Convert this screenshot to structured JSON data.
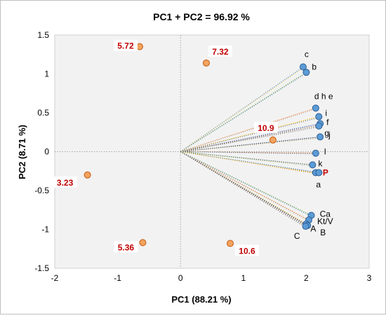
{
  "chart_data": {
    "type": "scatter",
    "title": "PC1 + PC2 = 96.92 %",
    "xlabel": "PC1 (88.21 %)",
    "ylabel": "PC2 (8.71 %)",
    "xlim": [
      -2,
      3
    ],
    "ylim": [
      -1.5,
      1.5
    ],
    "xticks": [
      -2,
      -1,
      0,
      1,
      2,
      3
    ],
    "yticks": [
      -1.5,
      -1,
      -0.5,
      0,
      0.5,
      1,
      1.5
    ],
    "xtick_labels": [
      "-2",
      "-1",
      "0",
      "1",
      "2",
      "3"
    ],
    "ytick_labels": [
      "-1.5",
      "-1",
      "-0.5",
      "0",
      "0.5",
      "1",
      "1.5"
    ],
    "grid": "vertical and horizontal at zero only (dotted)",
    "colors": {
      "loadings": "#5b9bd5",
      "scores": "#f4a460",
      "score_label": "#c00000",
      "plot_bg": "#f2f2f2"
    },
    "series": [
      {
        "kind": "loadings",
        "points": [
          {
            "label": "c",
            "x": 1.95,
            "y": 1.09
          },
          {
            "label": "b",
            "x": 2.0,
            "y": 1.02
          },
          {
            "label": "d h e",
            "x": 2.15,
            "y": 0.56
          },
          {
            "label": "i",
            "x": 2.2,
            "y": 0.45
          },
          {
            "label": "f",
            "x": 2.22,
            "y": 0.36
          },
          {
            "label": "g",
            "x": 2.2,
            "y": 0.33
          },
          {
            "label": "j",
            "x": 2.22,
            "y": 0.19
          },
          {
            "label": "l",
            "x": 2.15,
            "y": -0.02
          },
          {
            "label": "k",
            "x": 2.1,
            "y": -0.17
          },
          {
            "label": "P",
            "x": 2.15,
            "y": -0.27,
            "highlight": true
          },
          {
            "label": "a",
            "x": 2.2,
            "y": -0.27
          },
          {
            "label": "Ca",
            "x": 2.08,
            "y": -0.82
          },
          {
            "label": "Kt/V",
            "x": 2.04,
            "y": -0.88
          },
          {
            "label": "A",
            "x": 2.0,
            "y": -0.93
          },
          {
            "label": "B",
            "x": 2.02,
            "y": -0.95
          },
          {
            "label": "C",
            "x": 1.99,
            "y": -0.96
          }
        ]
      },
      {
        "kind": "scores",
        "points": [
          {
            "label": "5.72",
            "x": -0.65,
            "y": 1.35
          },
          {
            "label": "7.32",
            "x": 0.41,
            "y": 1.14
          },
          {
            "label": "10.9",
            "x": 1.47,
            "y": 0.15
          },
          {
            "label": "3.23",
            "x": -1.48,
            "y": -0.3
          },
          {
            "label": "5.36",
            "x": -0.6,
            "y": -1.17
          },
          {
            "label": "10.6",
            "x": 0.79,
            "y": -1.18
          }
        ]
      }
    ]
  }
}
